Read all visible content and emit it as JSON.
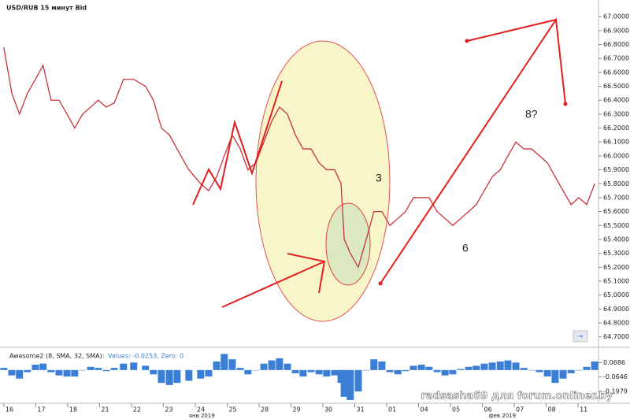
{
  "title": "USD/RUB 15 минут Bid",
  "annotations": [
    "3",
    "6",
    "8?"
  ],
  "watermark": "radsasha69 для forum.onliner.by",
  "indicator_values": "Values: -0.0253, Zero: 0",
  "chart_data": [
    {
      "type": "line",
      "x": [
        0,
        0.25,
        0.49,
        0.74,
        0.99,
        1.23,
        1.48,
        1.73,
        1.98,
        2.22,
        2.47,
        2.72,
        2.96,
        3.21,
        3.46,
        3.75,
        4.07,
        4.44,
        4.69,
        4.94,
        5.19,
        5.43,
        5.8,
        6.17,
        6.42,
        6.67,
        6.91,
        7.16,
        7.41,
        7.65,
        7.9,
        8.15,
        8.4,
        8.64,
        8.89,
        9.14,
        9.38,
        9.63,
        9.88,
        10.12,
        10.37,
        10.57,
        10.67,
        10.86,
        11.11,
        11.36,
        11.6,
        11.85,
        12.1,
        12.35,
        12.59,
        12.84,
        13.09,
        13.33,
        13.58,
        13.83,
        14.07,
        14.32,
        14.57,
        14.81,
        15.06,
        15.31,
        15.56,
        15.8,
        16.05,
        16.3,
        16.54,
        16.79,
        17.04,
        17.28,
        17.53,
        17.78,
        18.02,
        18.27,
        18.52
      ],
      "series": [
        {
          "color": "#c8323a",
          "values": [
            66.78,
            66.45,
            66.3,
            66.45,
            66.55,
            66.65,
            66.4,
            66.4,
            66.3,
            66.2,
            66.3,
            66.35,
            66.4,
            66.35,
            66.38,
            66.55,
            66.55,
            66.5,
            66.4,
            66.2,
            66.15,
            66.05,
            65.9,
            65.8,
            65.75,
            65.85,
            66.0,
            66.15,
            66.05,
            65.9,
            65.95,
            66.1,
            66.25,
            66.35,
            66.3,
            66.15,
            66.05,
            66.05,
            65.95,
            65.9,
            65.9,
            65.8,
            65.4,
            65.3,
            65.2,
            65.4,
            65.6,
            65.6,
            65.5,
            65.55,
            65.6,
            65.7,
            65.7,
            65.7,
            65.6,
            65.55,
            65.5,
            65.55,
            65.6,
            65.65,
            65.75,
            65.85,
            65.9,
            66.0,
            66.1,
            66.05,
            66.05,
            66.0,
            65.95,
            65.85,
            65.75,
            65.65,
            65.7,
            65.65,
            65.8
          ]
        }
      ],
      "xlim": [
        -0.12,
        18.64
      ],
      "xticks": [
        {
          "value": 0,
          "label": "16"
        },
        {
          "value": 1,
          "label": "17"
        },
        {
          "value": 2,
          "label": "18"
        },
        {
          "value": 3,
          "label": "21"
        },
        {
          "value": 4,
          "label": "22"
        },
        {
          "value": 5,
          "label": "23"
        },
        {
          "value": 6,
          "label": "24"
        },
        {
          "value": 7,
          "label": "25"
        },
        {
          "value": 8,
          "label": "28"
        },
        {
          "value": 9,
          "label": "29"
        },
        {
          "value": 10,
          "label": "30"
        },
        {
          "value": 11,
          "label": "31"
        },
        {
          "value": 12,
          "label": "01"
        },
        {
          "value": 13,
          "label": "04"
        },
        {
          "value": 14,
          "label": "05"
        },
        {
          "value": 15,
          "label": "06"
        },
        {
          "value": 16,
          "label": "07"
        },
        {
          "value": 17,
          "label": "08"
        },
        {
          "value": 18,
          "label": "11"
        }
      ],
      "months": [
        {
          "value": 5.8,
          "label": "янв 2019"
        },
        {
          "value": 15.2,
          "label": "фев 2019"
        }
      ],
      "ylim": [
        64.63,
        67.12
      ],
      "yticks": [
        {
          "value": 67.0,
          "label": "67.0000"
        },
        {
          "value": 66.9,
          "label": "66.9000"
        },
        {
          "value": 66.8,
          "label": "66.8000"
        },
        {
          "value": 66.7,
          "label": "66.7000"
        },
        {
          "value": 66.6,
          "label": "66.6000"
        },
        {
          "value": 66.5,
          "label": "66.5000"
        },
        {
          "value": 66.4,
          "label": "66.4000"
        },
        {
          "value": 66.3,
          "label": "66.3000"
        },
        {
          "value": 66.2,
          "label": "66.2000"
        },
        {
          "value": 66.1,
          "label": "66.1000"
        },
        {
          "value": 66.0,
          "label": "66.0000"
        },
        {
          "value": 65.9,
          "label": "65.9000"
        },
        {
          "value": 65.8,
          "label": "65.8000"
        },
        {
          "value": 65.7,
          "label": "65.7000"
        },
        {
          "value": 65.6,
          "label": "65.6000"
        },
        {
          "value": 65.5,
          "label": "65.5000"
        },
        {
          "value": 65.4,
          "label": "65.4000"
        },
        {
          "value": 65.3,
          "label": "65.3000"
        },
        {
          "value": 65.2,
          "label": "65.2000"
        },
        {
          "value": 65.1,
          "label": "65.1000"
        },
        {
          "value": 65.0,
          "label": "65.0000"
        },
        {
          "value": 64.9,
          "label": "64.9000"
        },
        {
          "value": 64.8,
          "label": "64.8000"
        },
        {
          "value": 64.7,
          "label": "64.7000"
        }
      ]
    },
    {
      "type": "bar",
      "series": [
        {
          "name": "Awesome2 (8, SMA, 32, SMA):",
          "color": "#3a7fd5",
          "values": [
            0.02,
            -0.05,
            -0.08,
            -0.02,
            0.05,
            0.06,
            -0.02,
            -0.05,
            -0.06,
            -0.06,
            0,
            0.03,
            0.02,
            -0.01,
            0.02,
            0.06,
            0.07,
            0.04,
            -0.04,
            -0.12,
            -0.14,
            -0.12,
            -0.1,
            -0.08,
            -0.06,
            0.08,
            0.15,
            0.1,
            0.02,
            -0.04,
            0,
            0.06,
            0.09,
            0.11,
            0.06,
            -0.03,
            -0.06,
            -0.02,
            -0.04,
            -0.06,
            -0.05,
            -0.12,
            -0.25,
            -0.28,
            -0.2,
            0,
            0.1,
            0.08,
            -0.02,
            -0.04,
            -0.01,
            0.04,
            0.05,
            0.03,
            -0.02,
            -0.05,
            -0.04,
            0.01,
            0.03,
            0.04,
            0.06,
            0.07,
            0.08,
            0.09,
            0.07,
            0.02,
            0,
            -0.02,
            -0.06,
            -0.12,
            -0.08,
            -0.03,
            0,
            0.03,
            0.08
          ]
        }
      ],
      "ylim": [
        -0.31,
        0.19
      ],
      "yticks": [
        0.0686,
        -0.0646,
        -0.1979
      ]
    }
  ]
}
